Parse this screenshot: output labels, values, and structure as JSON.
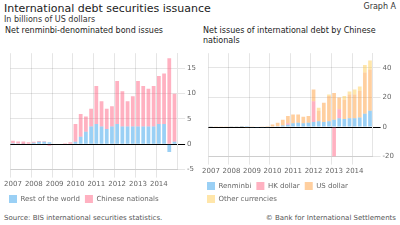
{
  "title": "International debt securities issuance",
  "subtitle": "In billions of US dollars",
  "annotations": [
    "Graph A",
    "Source: BIS international securities statistics.",
    "© Bank for International Settlements"
  ],
  "chart_data": [
    {
      "type": "bar",
      "title": "Net renminbi-denominated bond issues",
      "categories": [
        "2007",
        null,
        null,
        null,
        "2008",
        null,
        null,
        null,
        "2009",
        null,
        null,
        null,
        "2010",
        null,
        null,
        null,
        "2011",
        null,
        null,
        null,
        "2012",
        null,
        null,
        null,
        "2013",
        null,
        null,
        null,
        "2014",
        null,
        null,
        null
      ],
      "series": [
        {
          "name": "Rest of the world",
          "values": [
            0.2,
            0.15,
            0.05,
            0.1,
            0.3,
            0.5,
            0.5,
            0.4,
            0.1,
            0.1,
            0.0,
            0.1,
            0.5,
            1.5,
            2.5,
            3.5,
            4.0,
            3.5,
            3.0,
            3.5,
            4.0,
            3.5,
            3.5,
            3.5,
            3.5,
            3.5,
            3.5,
            3.5,
            4.0,
            4.0,
            -1.5,
            0.5
          ]
        },
        {
          "name": "Chinese nationals",
          "values": [
            0.5,
            0.4,
            0.5,
            0.3,
            0.2,
            0.15,
            0.1,
            -0.3,
            0.0,
            0.0,
            0.2,
            0.3,
            3.5,
            4.5,
            3.0,
            3.5,
            7.5,
            5.0,
            4.0,
            4.0,
            8.5,
            7.0,
            5.0,
            6.0,
            9.0,
            8.0,
            7.5,
            8.0,
            9.5,
            10.0,
            17.0,
            9.5
          ]
        }
      ],
      "stacked": true,
      "ylim": [
        -5,
        18
      ],
      "yticks": [
        -5,
        0,
        5,
        10,
        15
      ],
      "grid": true,
      "legend": "bottom"
    },
    {
      "type": "bar",
      "title": "Net issues of international debt by Chinese nationals",
      "categories": [
        "2007",
        null,
        null,
        null,
        "2008",
        null,
        null,
        null,
        "2009",
        null,
        null,
        null,
        "2010",
        null,
        null,
        null,
        "2011",
        null,
        null,
        null,
        "2012",
        null,
        null,
        null,
        "2013",
        null,
        null,
        null,
        "2014",
        null,
        null,
        null
      ],
      "series": [
        {
          "name": "Renminbi",
          "values": [
            0.5,
            0.3,
            0.3,
            0.3,
            0.2,
            0.2,
            0.1,
            0.1,
            -0.1,
            -0.1,
            -0.1,
            -0.1,
            0.3,
            0.5,
            1.0,
            1.5,
            2.5,
            3.0,
            2.5,
            3.0,
            3.5,
            4.0,
            3.5,
            4.0,
            5.0,
            6.0,
            5.5,
            6.0,
            6.0,
            6.5,
            9.0,
            11.0
          ]
        },
        {
          "name": "HK dollar",
          "values": [
            0.0,
            0.0,
            0.0,
            0.0,
            0.0,
            0.0,
            0.0,
            0.0,
            0.0,
            0.0,
            0.0,
            0.0,
            0.0,
            0.0,
            0.0,
            1.0,
            0.0,
            0.0,
            0.0,
            0.0,
            14.0,
            0.0,
            0.0,
            0.0,
            -20.0,
            6.0,
            0.0,
            0.0,
            0.0,
            0.0,
            0.0,
            0.0
          ]
        },
        {
          "name": "US dollar",
          "values": [
            0.3,
            0.2,
            0.3,
            0.2,
            0.2,
            0.2,
            0.2,
            -0.5,
            0.2,
            0.3,
            0.5,
            0.8,
            1.5,
            2.5,
            4.0,
            5.0,
            6.0,
            5.5,
            4.5,
            4.5,
            8.0,
            7.0,
            13.0,
            17.0,
            18.0,
            8.0,
            13.0,
            16.0,
            16.0,
            18.0,
            28.0,
            28.0
          ]
        },
        {
          "name": "Other currencies",
          "values": [
            0.0,
            0.0,
            0.0,
            0.0,
            0.0,
            0.0,
            0.0,
            0.0,
            0.0,
            0.0,
            0.0,
            0.0,
            0.0,
            0.0,
            0.0,
            0.0,
            0.0,
            0.0,
            0.0,
            0.0,
            0.0,
            2.0,
            0.0,
            1.0,
            0.0,
            0.0,
            2.5,
            2.0,
            3.5,
            3.0,
            5.0,
            6.0
          ]
        }
      ],
      "stacked": true,
      "ylim": [
        -20,
        50
      ],
      "yticks": [
        -20,
        0,
        20,
        40
      ],
      "grid": true,
      "legend": "bottom"
    }
  ]
}
